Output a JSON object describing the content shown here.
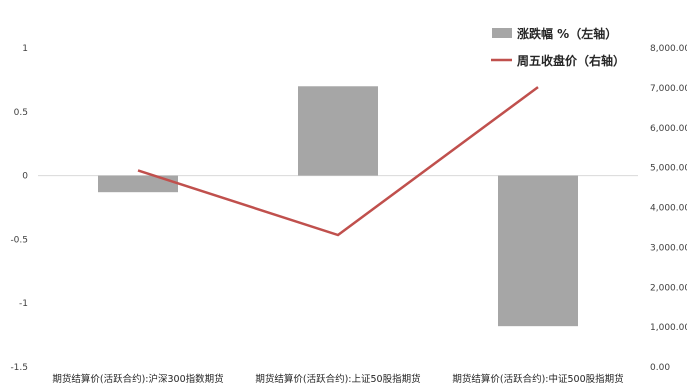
{
  "chart_data": {
    "type": "bar-line combo",
    "categories": [
      "期货结算价(活跃合约):沪深300指数期货",
      "期货结算价(活跃合约):上证50股指期货",
      "期货结算价(活跃合约):中证500股指期货"
    ],
    "series": [
      {
        "name": "涨跌幅 %（左轴）",
        "type": "bar",
        "axis": "left",
        "color": "#a6a6a6",
        "values": [
          -0.13,
          0.7,
          -1.18
        ]
      },
      {
        "name": "周五收盘价（右轴）",
        "type": "line",
        "axis": "right",
        "color": "#c0504d",
        "values": [
          4930,
          3310,
          7020
        ]
      }
    ],
    "left_axis": {
      "min": -1.5,
      "max": 1.0,
      "ticks": [
        "1",
        "0.5",
        "0",
        "-0.5",
        "-1",
        "-1.5"
      ],
      "tick_values": [
        1,
        0.5,
        0,
        -0.5,
        -1,
        -1.5
      ]
    },
    "right_axis": {
      "min": 0,
      "max": 8000,
      "ticks": [
        "8,000.00",
        "7,000.00",
        "6,000.00",
        "5,000.00",
        "4,000.00",
        "3,000.00",
        "2,000.00",
        "1,000.00",
        "0.00"
      ],
      "tick_values": [
        8000,
        7000,
        6000,
        5000,
        4000,
        3000,
        2000,
        1000,
        0
      ]
    },
    "legend_position": "top-right",
    "grid": false
  }
}
